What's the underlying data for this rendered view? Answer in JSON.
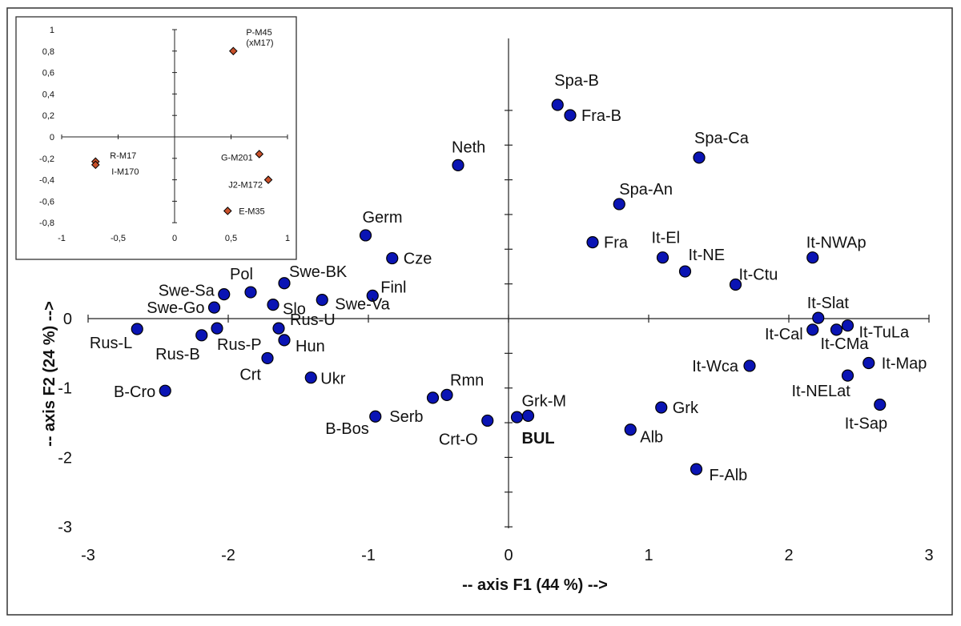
{
  "chart_data": [
    {
      "type": "scatter",
      "xlabel": "-- axis F1 (44 %) -->",
      "ylabel": "-- axis F2 (24 %) -->",
      "xlim": [
        -3,
        3
      ],
      "ylim": [
        -3,
        3
      ],
      "xticks": [
        -3,
        -2,
        -1,
        0,
        1,
        2,
        3
      ],
      "yticks": [
        -3,
        -2,
        -1,
        0
      ],
      "xtick_labels": [
        "-3",
        "-2",
        "-1",
        "0",
        "1",
        "2",
        "3"
      ],
      "ytick_labels": [
        "-3",
        "-2",
        "-1",
        "0"
      ],
      "marker_color": "#0a14b4",
      "points": [
        {
          "label": "Spa-B",
          "x": 0.35,
          "y": 3.08
        },
        {
          "label": "Fra-B",
          "x": 0.44,
          "y": 2.93
        },
        {
          "label": "Spa-Ca",
          "x": 1.36,
          "y": 2.32
        },
        {
          "label": "Neth",
          "x": -0.36,
          "y": 2.21
        },
        {
          "label": "Spa-An",
          "x": 0.79,
          "y": 1.65
        },
        {
          "label": "Germ",
          "x": -1.02,
          "y": 1.2
        },
        {
          "label": "Fra",
          "x": 0.6,
          "y": 1.1
        },
        {
          "label": "Cze",
          "x": -0.83,
          "y": 0.87
        },
        {
          "label": "It-El",
          "x": 1.1,
          "y": 0.88
        },
        {
          "label": "It-NE",
          "x": 1.26,
          "y": 0.68
        },
        {
          "label": "It-NWAp",
          "x": 2.17,
          "y": 0.88
        },
        {
          "label": "It-Ctu",
          "x": 1.62,
          "y": 0.49
        },
        {
          "label": "Pol",
          "x": -1.84,
          "y": 0.38
        },
        {
          "label": "Swe-BK",
          "x": -1.6,
          "y": 0.51
        },
        {
          "label": "Swe-Sa",
          "x": -2.03,
          "y": 0.35
        },
        {
          "label": "Finl",
          "x": -0.97,
          "y": 0.33
        },
        {
          "label": "Swe-Go",
          "x": -2.1,
          "y": 0.16
        },
        {
          "label": "Slo",
          "x": -1.68,
          "y": 0.2
        },
        {
          "label": "Swe-Va",
          "x": -1.33,
          "y": 0.27
        },
        {
          "label": "It-Slat",
          "x": 2.21,
          "y": 0.01
        },
        {
          "label": "It-TuLa",
          "x": 2.42,
          "y": -0.1
        },
        {
          "label": "It-Cal",
          "x": 2.17,
          "y": -0.16
        },
        {
          "label": "It-CMa",
          "x": 2.34,
          "y": -0.16
        },
        {
          "label": "Rus-L",
          "x": -2.65,
          "y": -0.15
        },
        {
          "label": "Rus-B",
          "x": -2.19,
          "y": -0.24
        },
        {
          "label": "Rus-P",
          "x": -2.08,
          "y": -0.14
        },
        {
          "label": "Rus-U",
          "x": -1.64,
          "y": -0.14
        },
        {
          "label": "Hun",
          "x": -1.6,
          "y": -0.31
        },
        {
          "label": "Crt",
          "x": -1.72,
          "y": -0.57
        },
        {
          "label": "It-Wca",
          "x": 1.72,
          "y": -0.68
        },
        {
          "label": "It-Map",
          "x": 2.57,
          "y": -0.64
        },
        {
          "label": "It-NELat",
          "x": 2.42,
          "y": -0.82
        },
        {
          "label": "Ukr",
          "x": -1.41,
          "y": -0.85
        },
        {
          "label": "B-Cro",
          "x": -2.45,
          "y": -1.04
        },
        {
          "label": "Rmn",
          "x": -0.44,
          "y": -1.1
        },
        {
          "label": "Serb",
          "x": -0.54,
          "y": -1.14
        },
        {
          "label": "It-Sap",
          "x": 2.65,
          "y": -1.24
        },
        {
          "label": "Grk",
          "x": 1.09,
          "y": -1.28
        },
        {
          "label": "B-Bos",
          "x": -0.95,
          "y": -1.41
        },
        {
          "label": "Crt-O",
          "x": -0.15,
          "y": -1.47
        },
        {
          "label": "Grk-M",
          "x": 0.14,
          "y": -1.4
        },
        {
          "label": "BUL",
          "x": 0.06,
          "y": -1.42
        },
        {
          "label": "Alb",
          "x": 0.87,
          "y": -1.6
        },
        {
          "label": "F-Alb",
          "x": 1.34,
          "y": -2.17
        }
      ]
    },
    {
      "type": "scatter",
      "xlim": [
        -1,
        1
      ],
      "ylim": [
        -0.8,
        1
      ],
      "xticks": [
        -1,
        -0.5,
        0,
        0.5,
        1
      ],
      "yticks": [
        -0.8,
        -0.6,
        -0.4,
        -0.2,
        0,
        0.2,
        0.4,
        0.6,
        0.8,
        1
      ],
      "xtick_labels": [
        "-1",
        "-0,5",
        "0",
        "0,5",
        "1"
      ],
      "ytick_labels": [
        "-0,8",
        "-0,6",
        "-0,4",
        "-0,2",
        "0",
        "0,2",
        "0,4",
        "0,6",
        "0,8",
        "1"
      ],
      "marker_color": "#c8502a",
      "points": [
        {
          "label": "P-M45",
          "sublabel": "(xM17)",
          "x": 0.52,
          "y": 0.8
        },
        {
          "label": "G-M201",
          "x": 0.75,
          "y": -0.16
        },
        {
          "label": "J2-M172",
          "x": 0.83,
          "y": -0.4
        },
        {
          "label": "E-M35",
          "x": 0.47,
          "y": -0.69
        },
        {
          "label": "R-M17",
          "x": -0.7,
          "y": -0.23
        },
        {
          "label": "I-M170",
          "x": -0.7,
          "y": -0.26
        }
      ]
    }
  ]
}
